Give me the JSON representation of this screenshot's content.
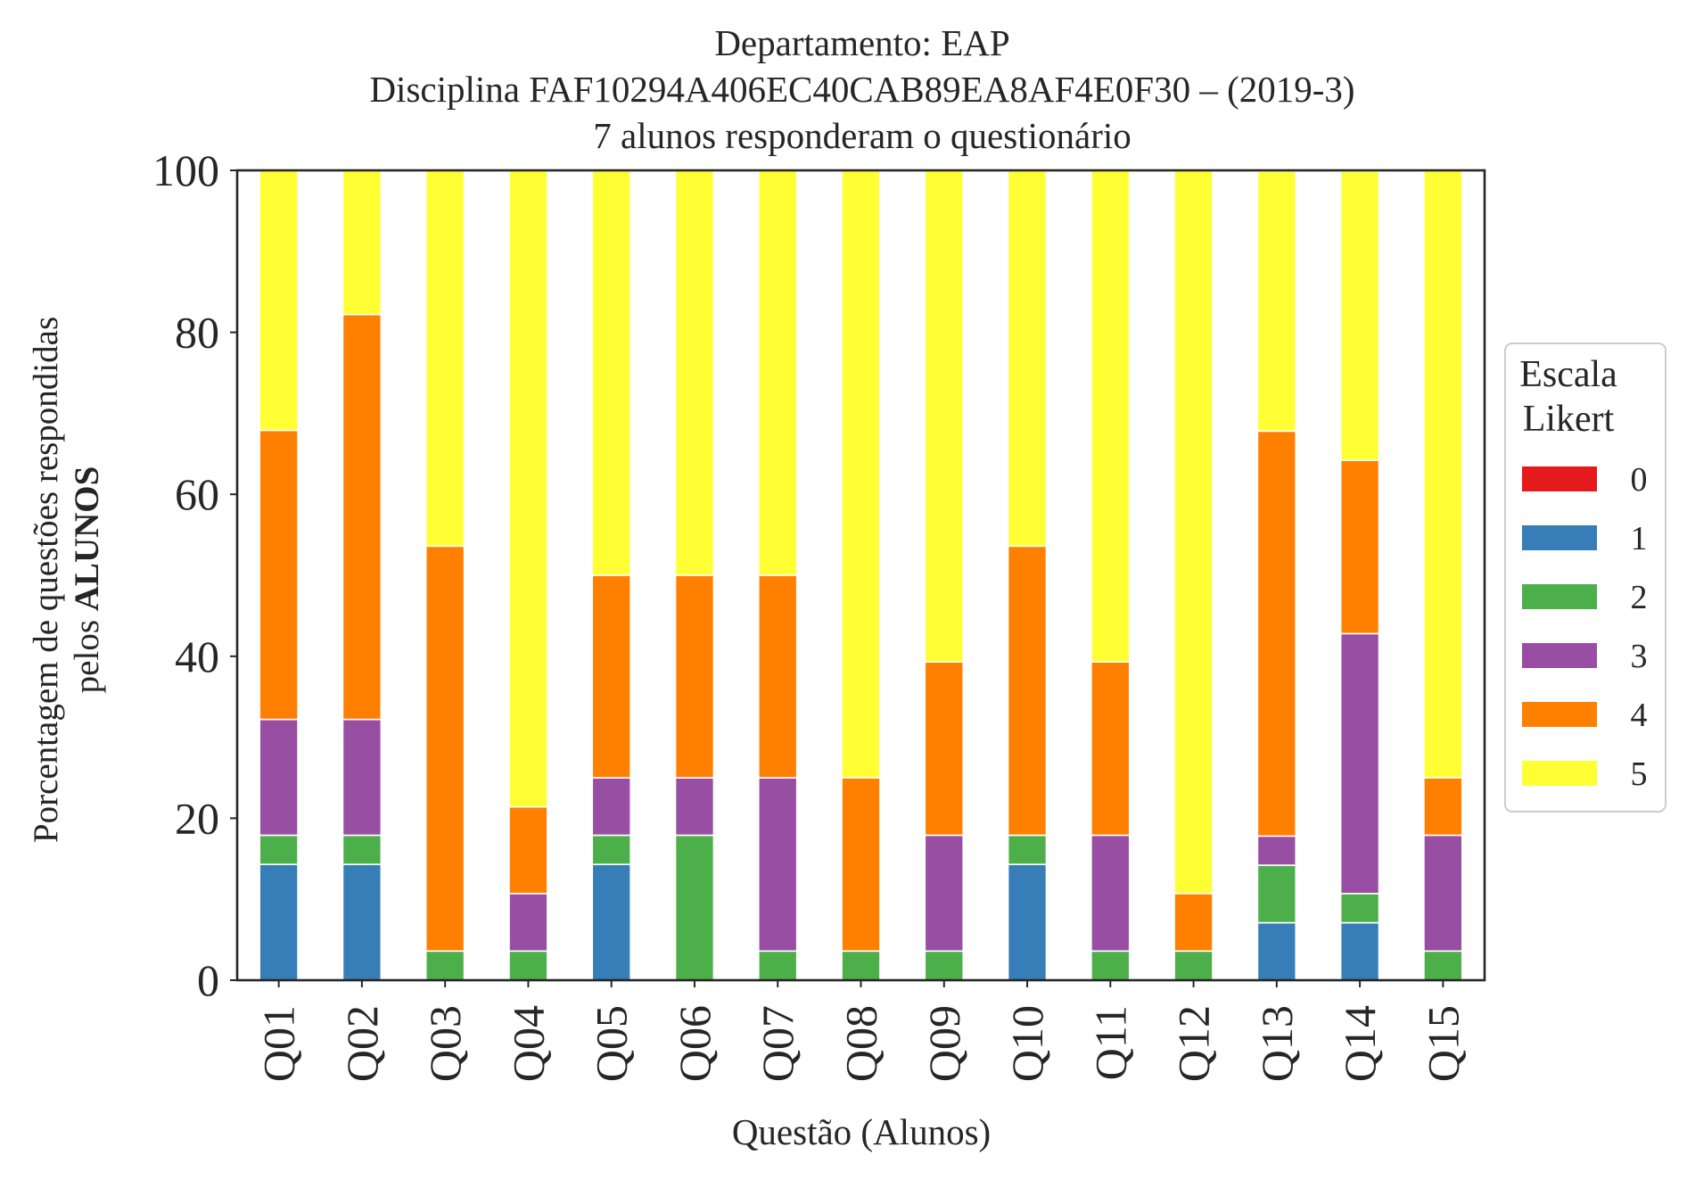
{
  "chart_data": {
    "type": "bar",
    "stacked": true,
    "title_lines": [
      "Departamento: EAP",
      "Disciplina FAF10294A406EC40CAB89EA8AF4E0F30 – (2019-3)",
      "7 alunos responderam o questionário"
    ],
    "xlabel": "Questão (Alunos)",
    "ylabel_line1": "Porcentagem de questões respondidas",
    "ylabel_line2_prefix": "pelos ",
    "ylabel_line2_bold": "ALUNOS",
    "ylim": [
      0,
      100
    ],
    "yticks": [
      0,
      20,
      40,
      60,
      80,
      100
    ],
    "grid": false,
    "legend_position": "right",
    "legend_title_lines": [
      "Escala",
      "Likert"
    ],
    "categories": [
      "Q01",
      "Q02",
      "Q03",
      "Q04",
      "Q05",
      "Q06",
      "Q07",
      "Q08",
      "Q09",
      "Q10",
      "Q11",
      "Q12",
      "Q13",
      "Q14",
      "Q15"
    ],
    "series": [
      {
        "name": "0",
        "color": "#e41a1c",
        "values": [
          0,
          0,
          0,
          0,
          0,
          0,
          0,
          0,
          0,
          0,
          0,
          0,
          0,
          0,
          0
        ]
      },
      {
        "name": "1",
        "color": "#377eb8",
        "values": [
          14.3,
          14.3,
          0,
          0,
          14.3,
          0,
          0,
          0,
          0,
          14.3,
          0,
          0,
          7.1,
          7.1,
          0
        ]
      },
      {
        "name": "2",
        "color": "#4daf4a",
        "values": [
          3.6,
          3.6,
          3.6,
          3.6,
          3.6,
          17.9,
          3.6,
          3.6,
          3.6,
          3.6,
          3.6,
          3.6,
          7.1,
          3.6,
          3.6
        ]
      },
      {
        "name": "3",
        "color": "#984ea3",
        "values": [
          14.3,
          14.3,
          0,
          7.1,
          7.1,
          7.1,
          21.4,
          0,
          14.3,
          0,
          14.3,
          0,
          3.6,
          32.1,
          14.3
        ]
      },
      {
        "name": "4",
        "color": "#ff7f00",
        "values": [
          35.7,
          50.0,
          50.0,
          10.7,
          25.0,
          25.0,
          25.0,
          21.4,
          21.4,
          35.7,
          21.4,
          7.1,
          50.0,
          21.4,
          7.1
        ]
      },
      {
        "name": "5",
        "color": "#ffff33",
        "values": [
          32.1,
          17.9,
          46.4,
          78.6,
          50.0,
          50.0,
          50.0,
          75.0,
          60.7,
          46.4,
          60.7,
          89.3,
          32.1,
          35.7,
          75.0
        ]
      }
    ]
  }
}
